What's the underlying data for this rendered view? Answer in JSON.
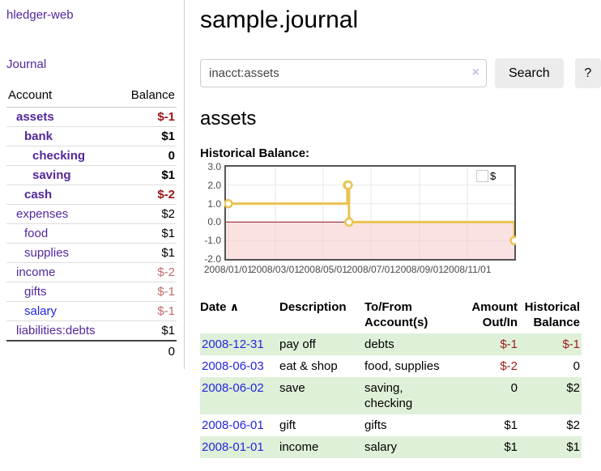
{
  "sidebar": {
    "app_title": "hledger-web",
    "nav": {
      "journal": "Journal"
    },
    "table": {
      "headers": {
        "account": "Account",
        "balance": "Balance"
      },
      "rows": [
        {
          "name": "assets",
          "depth": 0,
          "bold": true,
          "balance": "$-1",
          "balance_style": "v-negs"
        },
        {
          "name": "bank",
          "depth": 1,
          "bold": true,
          "balance": "$1",
          "balance_style": "v-pos"
        },
        {
          "name": "checking",
          "depth": 2,
          "bold": true,
          "balance": "0",
          "balance_style": "v-pos"
        },
        {
          "name": "saving",
          "depth": 2,
          "bold": true,
          "balance": "$1",
          "balance_style": "v-pos"
        },
        {
          "name": "cash",
          "depth": 1,
          "bold": true,
          "balance": "$-2",
          "balance_style": "v-negs"
        },
        {
          "name": "expenses",
          "depth": 0,
          "bold": false,
          "balance": "$2",
          "balance_style": "v-pos"
        },
        {
          "name": "food",
          "depth": 1,
          "bold": false,
          "balance": "$1",
          "balance_style": "v-pos"
        },
        {
          "name": "supplies",
          "depth": 1,
          "bold": false,
          "balance": "$1",
          "balance_style": "v-pos"
        },
        {
          "name": "income",
          "depth": 0,
          "bold": false,
          "balance": "$-2",
          "balance_style": "v-negsoft"
        },
        {
          "name": "gifts",
          "depth": 1,
          "bold": false,
          "balance": "$-1",
          "balance_style": "v-negsoft"
        },
        {
          "name": "salary",
          "depth": 1,
          "bold": false,
          "balance": "$-1",
          "balance_style": "v-negsoft",
          "link": "fresh"
        },
        {
          "name": "liabilities:debts",
          "depth": 0,
          "bold": false,
          "balance": "$1",
          "balance_style": "v-pos"
        }
      ],
      "total": "0"
    }
  },
  "main": {
    "title": "sample.journal",
    "search": {
      "value": "inacct:assets",
      "clear_icon": "×",
      "search_button": "Search",
      "help_button": "?"
    },
    "heading": "assets",
    "chart_title": "Historical Balance:"
  },
  "chart_data": {
    "type": "line",
    "title": "Historical Balance",
    "x_range": [
      "2008-01-01",
      "2008-12-31"
    ],
    "ylim": [
      -2,
      3
    ],
    "y_ticks": [
      "3.0",
      "2.0",
      "1.0",
      "0.0",
      "-1.0",
      "-2.0"
    ],
    "x_ticks": [
      "2008/01/01",
      "2008/03/01",
      "2008/05/01",
      "2008/07/01",
      "2008/09/01",
      "2008/11/01"
    ],
    "series": [
      {
        "name": "$",
        "color": "#e9c350",
        "step": true,
        "points": [
          [
            "2008-01-01",
            1
          ],
          [
            "2008-06-01",
            2
          ],
          [
            "2008-06-02",
            2
          ],
          [
            "2008-06-03",
            0
          ],
          [
            "2008-12-31",
            -1
          ]
        ]
      }
    ],
    "grid": true,
    "legend": {
      "label": "$",
      "position": "top-right"
    },
    "negative_region_fill": "#f7c5c5",
    "zero_line_color": "#8f1a1a",
    "border_color": "#545454"
  },
  "register": {
    "headers": {
      "date": "Date",
      "sort_icon": "∧",
      "description": "Description",
      "accounts_line1": "To/From",
      "accounts_line2": "Account(s)",
      "amount_line1": "Amount",
      "amount_line2": "Out/In",
      "balance_line1": "Historical",
      "balance_line2": "Balance"
    },
    "rows": [
      {
        "date": "2008-12-31",
        "description": "pay off",
        "accounts": "debts",
        "amount": "$-1",
        "amount_negative": true,
        "balance": "$-1",
        "balance_negative": true,
        "highlight": true
      },
      {
        "date": "2008-06-03",
        "description": "eat & shop",
        "accounts": "food, supplies",
        "amount": "$-2",
        "amount_negative": true,
        "balance": "0",
        "balance_negative": false,
        "highlight": false
      },
      {
        "date": "2008-06-02",
        "description": "save",
        "accounts": "saving, checking",
        "amount": "0",
        "amount_negative": false,
        "balance": "$2",
        "balance_negative": false,
        "highlight": true
      },
      {
        "date": "2008-06-01",
        "description": "gift",
        "accounts": "gifts",
        "amount": "$1",
        "amount_negative": false,
        "balance": "$2",
        "balance_negative": false,
        "highlight": false
      },
      {
        "date": "2008-01-01",
        "description": "income",
        "accounts": "salary",
        "amount": "$1",
        "amount_negative": false,
        "balance": "$1",
        "balance_negative": false,
        "highlight": true
      }
    ],
    "colors": {
      "highlight_row": "#dff0d8",
      "negative": "#9c1b1b",
      "date_link": "#2525dd",
      "account_link": "#53279c"
    }
  }
}
